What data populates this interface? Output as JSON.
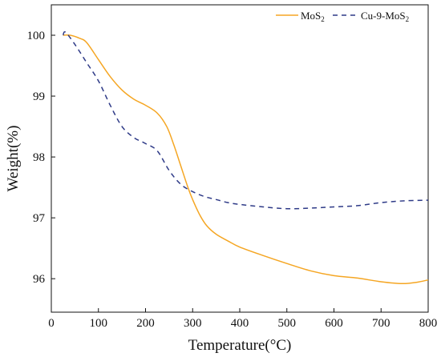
{
  "chart_data": {
    "type": "line",
    "title": "",
    "xlabel": "Temperature(°C)",
    "ylabel": "Weight(%)",
    "xlim": [
      0,
      800
    ],
    "ylim": [
      95.45,
      100.5
    ],
    "grid": false,
    "legend_position": "top-right",
    "x_ticks": [
      0,
      100,
      200,
      300,
      400,
      500,
      600,
      700,
      800
    ],
    "y_ticks": [
      96,
      97,
      98,
      99,
      100
    ],
    "series": [
      {
        "name": "MoS",
        "name_subscript": "2",
        "color": "#F5A623",
        "dash": "solid",
        "points": [
          [
            25,
            100.0
          ],
          [
            40,
            100.0
          ],
          [
            60,
            99.95
          ],
          [
            75,
            99.88
          ],
          [
            100,
            99.6
          ],
          [
            125,
            99.32
          ],
          [
            150,
            99.1
          ],
          [
            175,
            98.95
          ],
          [
            200,
            98.85
          ],
          [
            225,
            98.72
          ],
          [
            245,
            98.5
          ],
          [
            260,
            98.2
          ],
          [
            275,
            97.85
          ],
          [
            290,
            97.5
          ],
          [
            300,
            97.3
          ],
          [
            315,
            97.05
          ],
          [
            330,
            96.87
          ],
          [
            350,
            96.73
          ],
          [
            375,
            96.62
          ],
          [
            400,
            96.52
          ],
          [
            450,
            96.38
          ],
          [
            500,
            96.25
          ],
          [
            550,
            96.13
          ],
          [
            600,
            96.05
          ],
          [
            650,
            96.01
          ],
          [
            700,
            95.95
          ],
          [
            745,
            95.92
          ],
          [
            775,
            95.94
          ],
          [
            800,
            95.98
          ]
        ]
      },
      {
        "name": "Cu-9-MoS",
        "name_subscript": "2",
        "color": "#2E3A87",
        "dash": "dashed",
        "points": [
          [
            25,
            100.0
          ],
          [
            30,
            100.05
          ],
          [
            50,
            99.85
          ],
          [
            75,
            99.55
          ],
          [
            100,
            99.25
          ],
          [
            125,
            98.85
          ],
          [
            150,
            98.5
          ],
          [
            175,
            98.32
          ],
          [
            200,
            98.22
          ],
          [
            225,
            98.1
          ],
          [
            250,
            97.78
          ],
          [
            275,
            97.55
          ],
          [
            300,
            97.43
          ],
          [
            325,
            97.35
          ],
          [
            350,
            97.3
          ],
          [
            375,
            97.25
          ],
          [
            400,
            97.22
          ],
          [
            450,
            97.18
          ],
          [
            500,
            97.15
          ],
          [
            550,
            97.16
          ],
          [
            600,
            97.18
          ],
          [
            650,
            97.2
          ],
          [
            700,
            97.25
          ],
          [
            750,
            97.28
          ],
          [
            800,
            97.29
          ]
        ]
      }
    ]
  }
}
